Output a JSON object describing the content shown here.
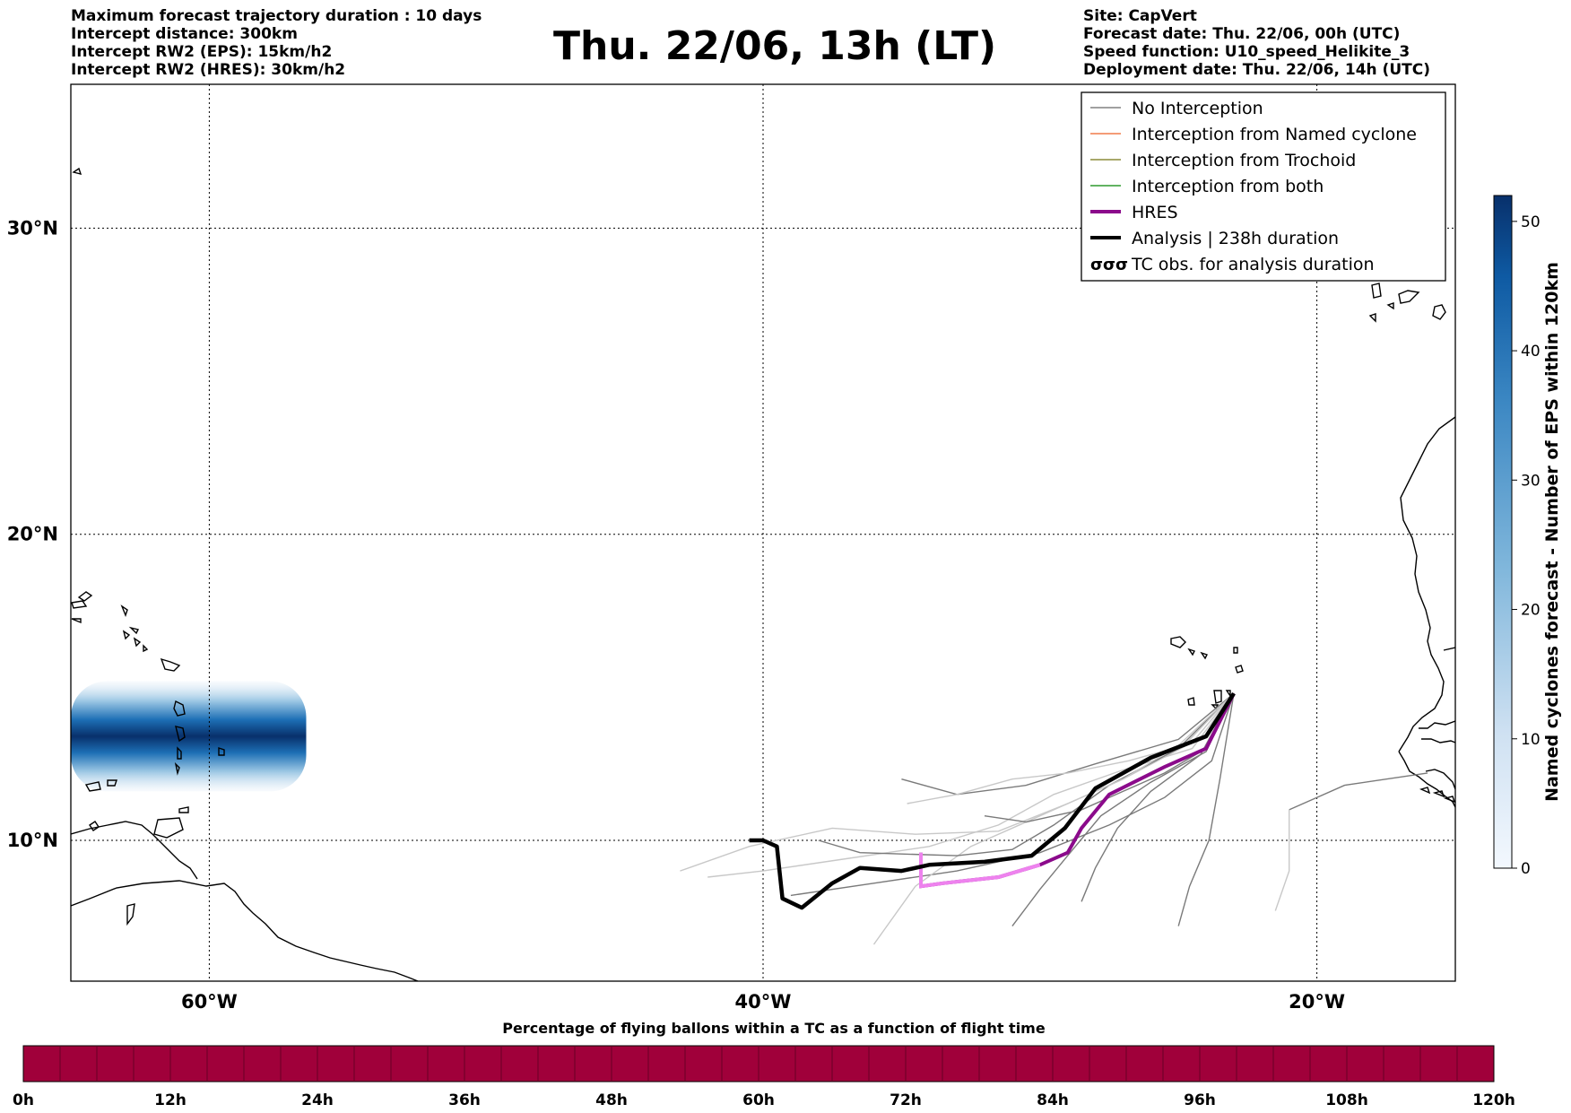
{
  "meta_left": [
    "Maximum forecast trajectory duration : 10 days",
    "Intercept distance: 300km",
    "Intercept RW2 (EPS):  15km/h2",
    "Intercept RW2 (HRES): 30km/h2"
  ],
  "meta_right": [
    "Site: CapVert",
    "Forecast date: Thu. 22/06, 00h (UTC)",
    "Speed function: U10_speed_Helikite_3",
    "Deployment date: Thu. 22/06, 14h (UTC)"
  ],
  "title": "Thu. 22/06, 13h (LT)",
  "map": {
    "lon_range": [
      -65,
      -15
    ],
    "lat_range": [
      5.4,
      34.7
    ],
    "lat_ticks": [
      {
        "value": 30,
        "label": "30°N"
      },
      {
        "value": 20,
        "label": "20°N"
      },
      {
        "value": 10,
        "label": "10°N"
      }
    ],
    "lon_ticks": [
      {
        "value": -60,
        "label": "60°W"
      },
      {
        "value": -40,
        "label": "40°W"
      },
      {
        "value": -20,
        "label": "20°W"
      }
    ],
    "gridlines": true
  },
  "legend": {
    "items": [
      {
        "label": "No Interception",
        "color": "#808080",
        "kind": "thin"
      },
      {
        "label": "Interception from Named cyclone",
        "color": "#f07b4a",
        "kind": "thin"
      },
      {
        "label": "Interception from Trochoid",
        "color": "#8b8b3a",
        "kind": "thin"
      },
      {
        "label": "Interception from both",
        "color": "#2e9a2e",
        "kind": "thin"
      },
      {
        "label": "HRES",
        "color": "#8b0a8b",
        "kind": "thick"
      },
      {
        "label": "Analysis | 238h duration",
        "color": "#000000",
        "kind": "thick"
      },
      {
        "label": "TC obs. for analysis duration",
        "color": "#000000",
        "kind": "tc"
      }
    ]
  },
  "colorbar_right": {
    "label": "Named cyclones forecast - Number of EPS within 120km",
    "min": 0,
    "max": 52,
    "ticks": [
      0,
      10,
      20,
      30,
      40,
      50
    ],
    "color_low": "#eaf2fb",
    "color_high": "#08306b"
  },
  "colorbar_bottom": {
    "title": "Percentage of flying ballons within a TC as a function of flight time",
    "color": "#a0003a",
    "ticks": [
      "0h",
      "12h",
      "24h",
      "36h",
      "48h",
      "60h",
      "72h",
      "84h",
      "96h",
      "108h",
      "120h"
    ]
  },
  "analysis_track": [
    [
      -23.0,
      14.8
    ],
    [
      -24.0,
      13.4
    ],
    [
      -26.0,
      12.7
    ],
    [
      -28.0,
      11.7
    ],
    [
      -29.1,
      10.4
    ],
    [
      -30.3,
      9.5
    ],
    [
      -32.0,
      9.3
    ],
    [
      -34.0,
      9.2
    ],
    [
      -35.0,
      9.0
    ],
    [
      -36.5,
      9.1
    ],
    [
      -37.5,
      8.6
    ],
    [
      -38.6,
      7.8
    ],
    [
      -39.3,
      8.1
    ],
    [
      -39.5,
      9.8
    ],
    [
      -40.0,
      10.0
    ],
    [
      -40.5,
      10.0
    ]
  ],
  "hres_track": [
    [
      -23.0,
      14.8
    ],
    [
      -24.0,
      13.0
    ],
    [
      -25.5,
      12.4
    ],
    [
      -27.5,
      11.5
    ],
    [
      -28.5,
      10.4
    ],
    [
      -29.0,
      9.6
    ],
    [
      -30.0,
      9.2
    ],
    [
      -31.5,
      8.8
    ],
    [
      -33.5,
      8.6
    ],
    [
      -34.3,
      8.5
    ],
    [
      -34.3,
      9.6
    ]
  ],
  "eps_tracks": [
    [
      [
        -23.0,
        14.8
      ],
      [
        -24.5,
        13.0
      ],
      [
        -27.0,
        12.3
      ],
      [
        -29.5,
        11.5
      ],
      [
        -31.5,
        10.5
      ],
      [
        -34.0,
        9.8
      ],
      [
        -37.0,
        9.4
      ],
      [
        -40.0,
        9.0
      ],
      [
        -42.0,
        8.8
      ]
    ],
    [
      [
        -23.0,
        14.8
      ],
      [
        -23.8,
        12.6
      ],
      [
        -25.5,
        11.4
      ],
      [
        -27.5,
        10.5
      ],
      [
        -30.0,
        9.6
      ],
      [
        -33.0,
        9.0
      ],
      [
        -36.0,
        8.6
      ],
      [
        -39.0,
        8.2
      ]
    ],
    [
      [
        -23.0,
        14.8
      ],
      [
        -24.0,
        12.9
      ],
      [
        -26.0,
        11.9
      ],
      [
        -27.8,
        10.8
      ],
      [
        -29.0,
        9.5
      ],
      [
        -30.0,
        8.4
      ],
      [
        -31.0,
        7.2
      ]
    ],
    [
      [
        -23.0,
        14.8
      ],
      [
        -24.5,
        13.2
      ],
      [
        -27.0,
        12.0
      ],
      [
        -30.0,
        10.8
      ],
      [
        -32.5,
        9.8
      ],
      [
        -34.5,
        8.5
      ],
      [
        -36.0,
        6.6
      ]
    ],
    [
      [
        -23.0,
        14.8
      ],
      [
        -25.0,
        13.3
      ],
      [
        -28.0,
        12.5
      ],
      [
        -30.5,
        11.8
      ],
      [
        -33.0,
        11.5
      ],
      [
        -35.0,
        12.0
      ]
    ],
    [
      [
        -23.0,
        14.8
      ],
      [
        -25.0,
        13.0
      ],
      [
        -27.5,
        11.8
      ],
      [
        -29.5,
        10.5
      ],
      [
        -31.0,
        9.7
      ],
      [
        -33.0,
        9.5
      ],
      [
        -36.5,
        9.6
      ],
      [
        -38.0,
        10.0
      ]
    ],
    [
      [
        -23.0,
        14.8
      ],
      [
        -24.8,
        13.1
      ],
      [
        -26.8,
        12.6
      ],
      [
        -29.0,
        12.2
      ],
      [
        -31.0,
        12.0
      ],
      [
        -33.0,
        11.5
      ],
      [
        -34.8,
        11.2
      ]
    ],
    [
      [
        -23.0,
        14.8
      ],
      [
        -23.5,
        12.0
      ],
      [
        -23.9,
        10.0
      ],
      [
        -24.6,
        8.5
      ],
      [
        -25.0,
        7.2
      ]
    ],
    [
      [
        -23.0,
        14.8
      ],
      [
        -24.2,
        12.8
      ],
      [
        -26.0,
        11.6
      ],
      [
        -27.2,
        10.4
      ],
      [
        -28.0,
        9.1
      ],
      [
        -28.5,
        8.0
      ]
    ],
    [
      [
        -23.0,
        14.8
      ],
      [
        -25.0,
        13.1
      ],
      [
        -27.0,
        12.0
      ],
      [
        -29.0,
        11.2
      ],
      [
        -31.5,
        10.3
      ],
      [
        -34.5,
        10.2
      ],
      [
        -37.5,
        10.4
      ],
      [
        -40.5,
        9.8
      ],
      [
        -43.0,
        9.0
      ]
    ],
    [
      [
        -23.0,
        14.8
      ],
      [
        -24.0,
        13.0
      ],
      [
        -25.5,
        12.2
      ],
      [
        -27.0,
        11.6
      ],
      [
        -28.5,
        11.0
      ],
      [
        -30.5,
        10.6
      ],
      [
        -32.0,
        10.8
      ]
    ],
    [
      [
        -21.0,
        11.0
      ],
      [
        -19.0,
        11.8
      ],
      [
        -16.0,
        12.2
      ]
    ],
    [
      [
        -21.0,
        11.0
      ],
      [
        -21.0,
        9.0
      ],
      [
        -21.5,
        7.7
      ]
    ]
  ],
  "hotspot": {
    "lon_start": -65,
    "lon_end": -56.5,
    "lat_center": 13.4,
    "lat_half_width": 1.8
  }
}
